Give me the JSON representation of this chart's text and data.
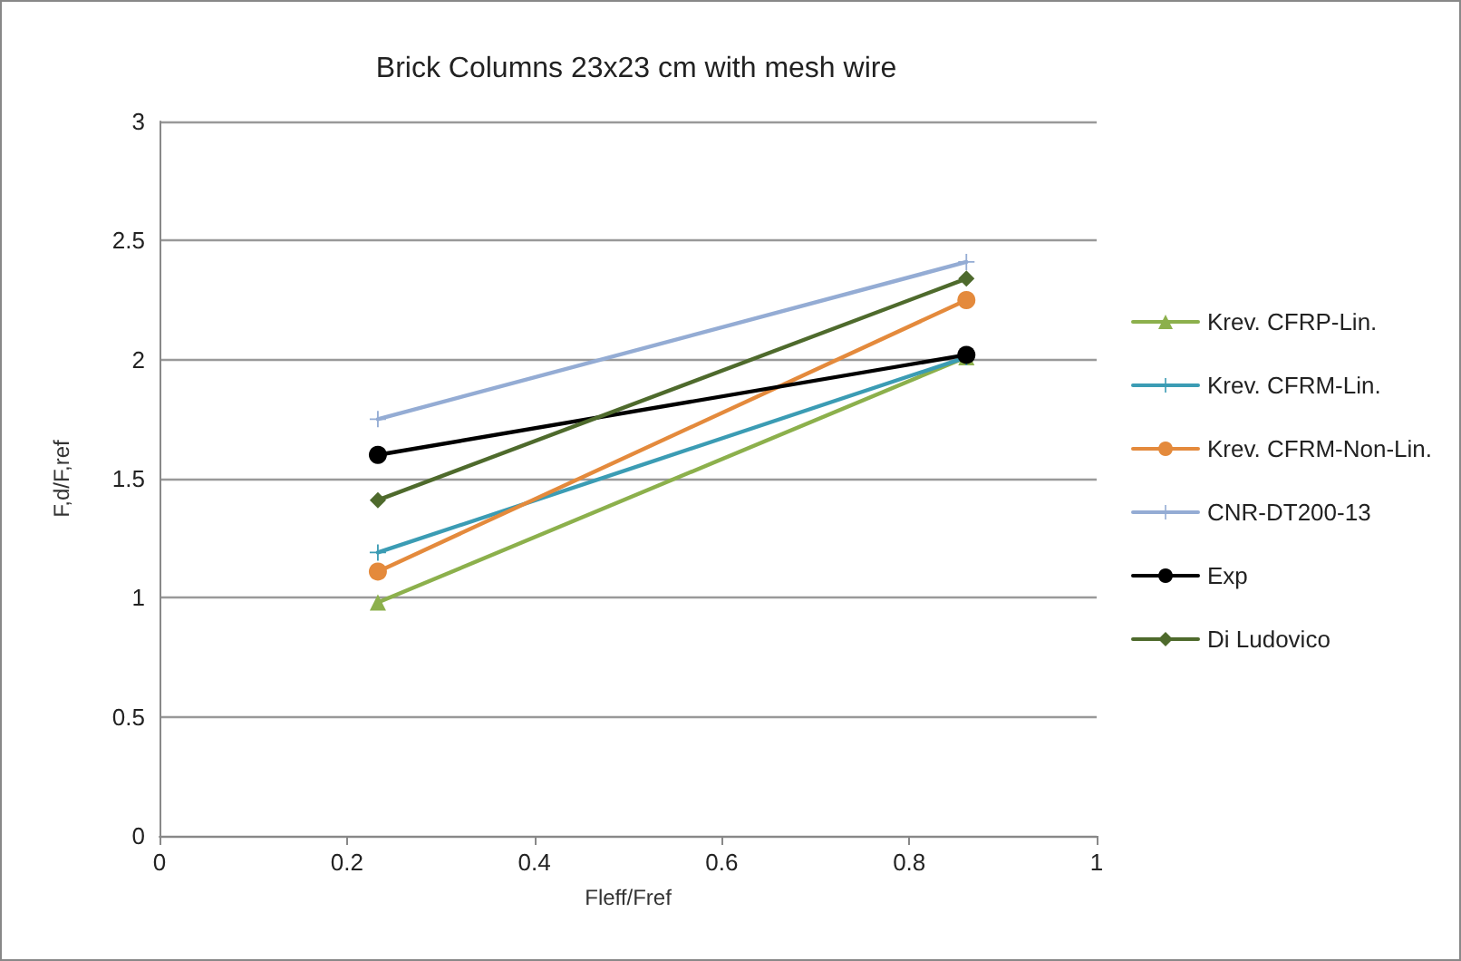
{
  "chart_data": {
    "type": "line",
    "title": "Brick Columns 23x23 cm with mesh wire",
    "xlabel": "Fleff/Fref",
    "ylabel": "F,d/F,ref",
    "x": [
      0.233,
      0.861
    ],
    "series": [
      {
        "name": "Krev. CFRP-Lin.",
        "color": "#8cb04c",
        "marker": "triangle",
        "values": [
          0.98,
          2.01
        ]
      },
      {
        "name": "Krev. CFRM-Lin.",
        "color": "#3b9cb4",
        "marker": "cross",
        "values": [
          1.19,
          2.01
        ]
      },
      {
        "name": "Krev. CFRM-Non-Lin.",
        "color": "#e48a3c",
        "marker": "circle",
        "values": [
          1.11,
          2.25
        ]
      },
      {
        "name": "CNR-DT200-13",
        "color": "#94acd4",
        "marker": "cross",
        "values": [
          1.75,
          2.41
        ]
      },
      {
        "name": "Exp",
        "color": "#000000",
        "marker": "circle",
        "values": [
          1.6,
          2.02
        ]
      },
      {
        "name": "Di Ludovico",
        "color": "#4e6a2c",
        "marker": "diamond",
        "values": [
          1.41,
          2.34
        ]
      }
    ],
    "xlim": [
      0,
      1
    ],
    "xticks": [
      0,
      0.2,
      0.4,
      0.6,
      0.8,
      1
    ],
    "ylim": [
      0,
      3
    ],
    "yticks": [
      0,
      0.5,
      1,
      1.5,
      2,
      2.5,
      3
    ],
    "grid": "y",
    "legend": "right"
  }
}
